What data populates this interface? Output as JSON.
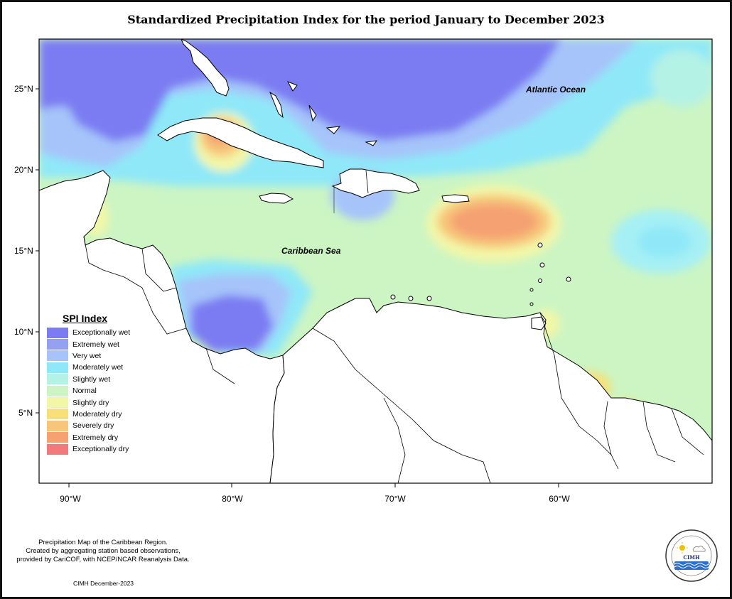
{
  "title": "Standardized Precipitation Index for the period January to December 2023",
  "axes": {
    "lat_ticks": [
      "25°N",
      "20°N",
      "15°N",
      "10°N",
      "5°N"
    ],
    "lon_ticks": [
      "90°W",
      "80°W",
      "70°W",
      "60°W"
    ]
  },
  "labels": {
    "atlantic": "Atlantic Ocean",
    "caribbean": "Caribbean Sea"
  },
  "legend": {
    "title": "SPI Index",
    "items": [
      {
        "label": "Exceptionally wet",
        "color": "#7b7bf2"
      },
      {
        "label": "Extremely wet",
        "color": "#94a0f2"
      },
      {
        "label": "Very wet",
        "color": "#a6c4fa"
      },
      {
        "label": "Moderately wet",
        "color": "#8fe8f8"
      },
      {
        "label": "Slightly wet",
        "color": "#b4f2e6"
      },
      {
        "label": "Normal",
        "color": "#ccf5c3"
      },
      {
        "label": "Slightly dry",
        "color": "#f2f7a8"
      },
      {
        "label": "Moderately dry",
        "color": "#f7e079"
      },
      {
        "label": "Severely dry",
        "color": "#f7c67a"
      },
      {
        "label": "Extremely dry",
        "color": "#f5a172"
      },
      {
        "label": "Exceptionally dry",
        "color": "#f27a7a"
      }
    ]
  },
  "footer": {
    "note_lines": [
      "Precipitation Map of the Caribbean Region.",
      "Created by aggregating station based observations,",
      "provided by CariCOF, with NCEP/NCAR Reanalysis Data."
    ],
    "credit": "CIMH December-2023",
    "logo_text": "CIMH"
  }
}
